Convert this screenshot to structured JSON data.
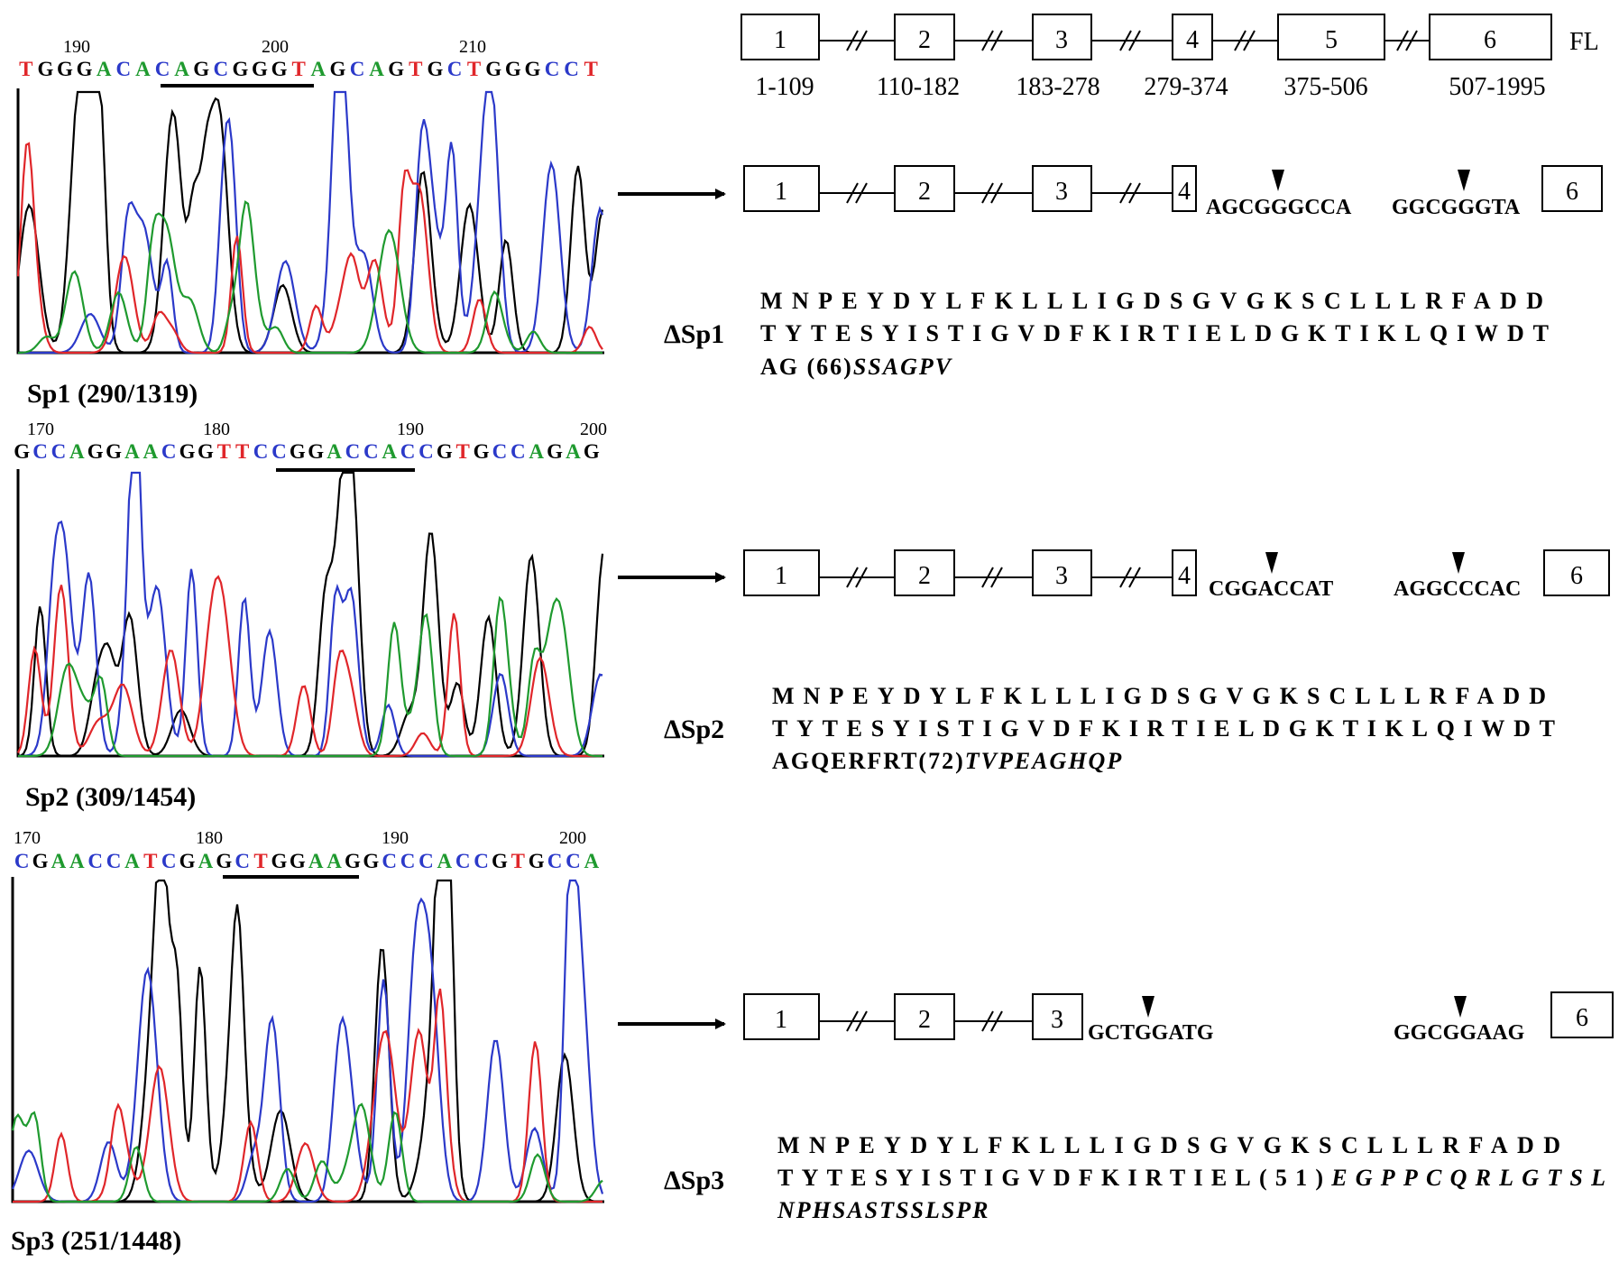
{
  "colors": {
    "A": "#1f9a2f",
    "C": "#2b39c9",
    "G": "#000000",
    "T": "#e0262a",
    "frame": "#000000"
  },
  "full_length": {
    "label": "FL",
    "exons": [
      {
        "num": "1",
        "range": "1-109"
      },
      {
        "num": "2",
        "range": "110-182"
      },
      {
        "num": "3",
        "range": "183-278"
      },
      {
        "num": "4",
        "range": "279-374"
      },
      {
        "num": "5",
        "range": "375-506"
      },
      {
        "num": "6",
        "range": "507-1995"
      }
    ]
  },
  "panels": [
    {
      "trace_label": "Sp1 (290/1319)",
      "positions": [
        "190",
        "200",
        "210"
      ],
      "bases": "TGGGACACAGCGGGTAGCAGTGCTGGGCCT",
      "isoform": "ΔSp1",
      "exons_shown": [
        "1",
        "2",
        "3",
        "4",
        "6"
      ],
      "junction_left": "AGCGGGCCA",
      "junction_right": "GGCGGGTA",
      "protein": [
        {
          "plain": "MNPEYDYLFKLLLIGDSGVGKSCLLLRFADD",
          "italic": ""
        },
        {
          "plain": "TYTESYISTIGVDFKIRTIELDGKTIKLQIWDT",
          "italic": ""
        },
        {
          "plain": "AG (66)",
          "italic": "SSAGPV"
        }
      ]
    },
    {
      "trace_label": "Sp2 (309/1454)",
      "positions": [
        "170",
        "180",
        "190",
        "200"
      ],
      "bases": "GCCAGGAACGGTTCCGGACCACCGTGCCAGAG",
      "isoform": "ΔSp2",
      "exons_shown": [
        "1",
        "2",
        "3",
        "4",
        "6"
      ],
      "junction_left": "CGGACCAT",
      "junction_right": "AGGCCCAC",
      "protein": [
        {
          "plain": "MNPEYDYLFKLLLIGDSGVGKSCLLLRFADD",
          "italic": ""
        },
        {
          "plain": "TYTESYISTIGVDFKIRTIELDGKTIKLQIWDT",
          "italic": ""
        },
        {
          "plain": "AGQERFRT(72)",
          "italic": "TVPEAGHQP"
        }
      ]
    },
    {
      "trace_label": "Sp3 (251/1448)",
      "positions": [
        "170",
        "180",
        "190",
        "200"
      ],
      "bases": "CGAACCATCGAGCTGGAAGGCCCACCGTGCCA",
      "isoform": "ΔSp3",
      "exons_shown": [
        "1",
        "2",
        "3",
        "6"
      ],
      "junction_left": "GCTGGATG",
      "junction_right": "GGCGGAAG",
      "protein": [
        {
          "plain": "MNPEYDYLFKLLLIGDSGVGKSCLLLRFADD",
          "italic": ""
        },
        {
          "plain": "TYTESYISTIGVDFKIRTIEL(51)",
          "italic": "EGPPCQRLGTSL"
        },
        {
          "plain": "",
          "italic": "NPHSASTSSLSPR"
        }
      ]
    }
  ]
}
